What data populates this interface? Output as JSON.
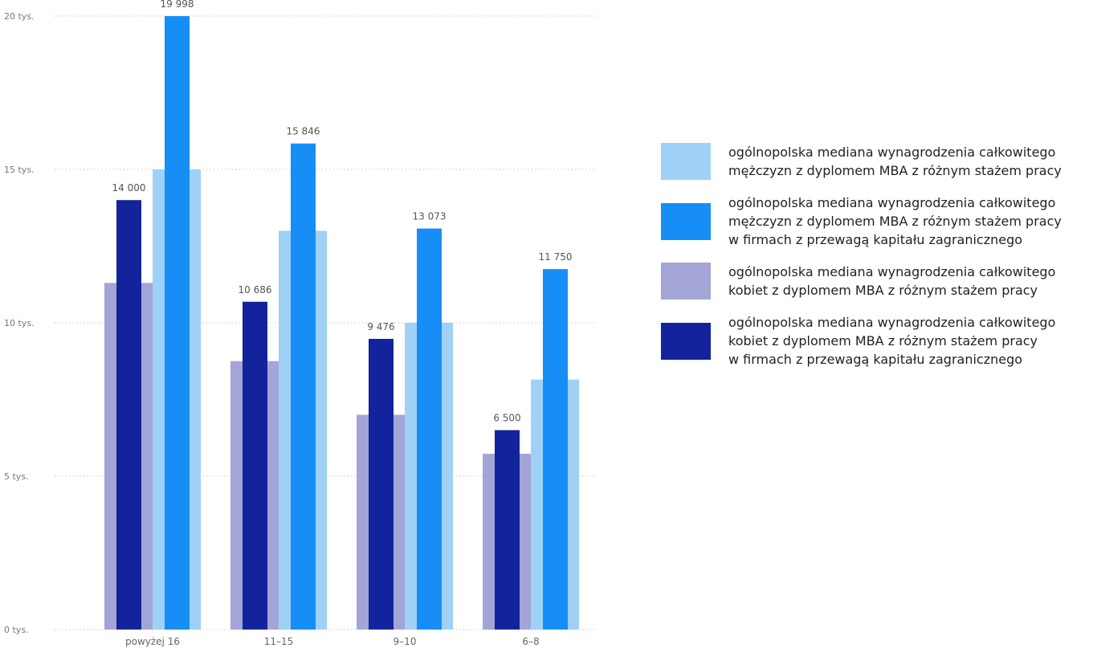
{
  "chart_data": {
    "type": "bar",
    "title": "",
    "xlabel": "",
    "ylabel": "",
    "categories": [
      "powyżej 16",
      "11–15",
      "9–10",
      "6–8"
    ],
    "ylim": [
      0,
      20000
    ],
    "yticks": [
      {
        "value": 0,
        "label": "0 tys."
      },
      {
        "value": 5000,
        "label": "5 tys."
      },
      {
        "value": 10000,
        "label": "10 tys."
      },
      {
        "value": 15000,
        "label": "15 tys."
      },
      {
        "value": 20000,
        "label": "20 tys."
      }
    ],
    "grid": true,
    "legend_position": "right",
    "series": [
      {
        "name": "ogólnopolska mediana wynagrodzenia całkowitego\nmężczyzn z dyplomem MBA z różnym stażem pracy",
        "color": "#9fd1f7",
        "values": [
          15000,
          13000,
          10000,
          8150
        ],
        "labels": [
          "",
          "",
          "",
          ""
        ]
      },
      {
        "name": "ogólnopolska mediana wynagrodzenia całkowitego\nmężczyzn z dyplomem MBA z różnym stażem pracy\nw firmach z przewagą kapitału zagranicznego",
        "color": "#168ef5",
        "values": [
          19998,
          15846,
          13073,
          11750
        ],
        "labels": [
          "19 998",
          "15 846",
          "13 073",
          "11 750"
        ]
      },
      {
        "name": "ogólnopolska mediana wynagrodzenia całkowitego\nkobiet z dyplomem MBA z różnym stażem pracy",
        "color": "#a3a5d6",
        "values": [
          11300,
          8750,
          7000,
          5730
        ],
        "labels": [
          "",
          "",
          "",
          ""
        ]
      },
      {
        "name": "ogólnopolska mediana wynagrodzenia całkowitego\nkobiet z dyplomem MBA z różnym stażem pracy\nw firmach z przewagą kapitału zagranicznego",
        "color": "#13239c",
        "values": [
          14000,
          10686,
          9476,
          6500
        ],
        "labels": [
          "14 000",
          "10 686",
          "9 476",
          "6 500"
        ]
      }
    ]
  }
}
